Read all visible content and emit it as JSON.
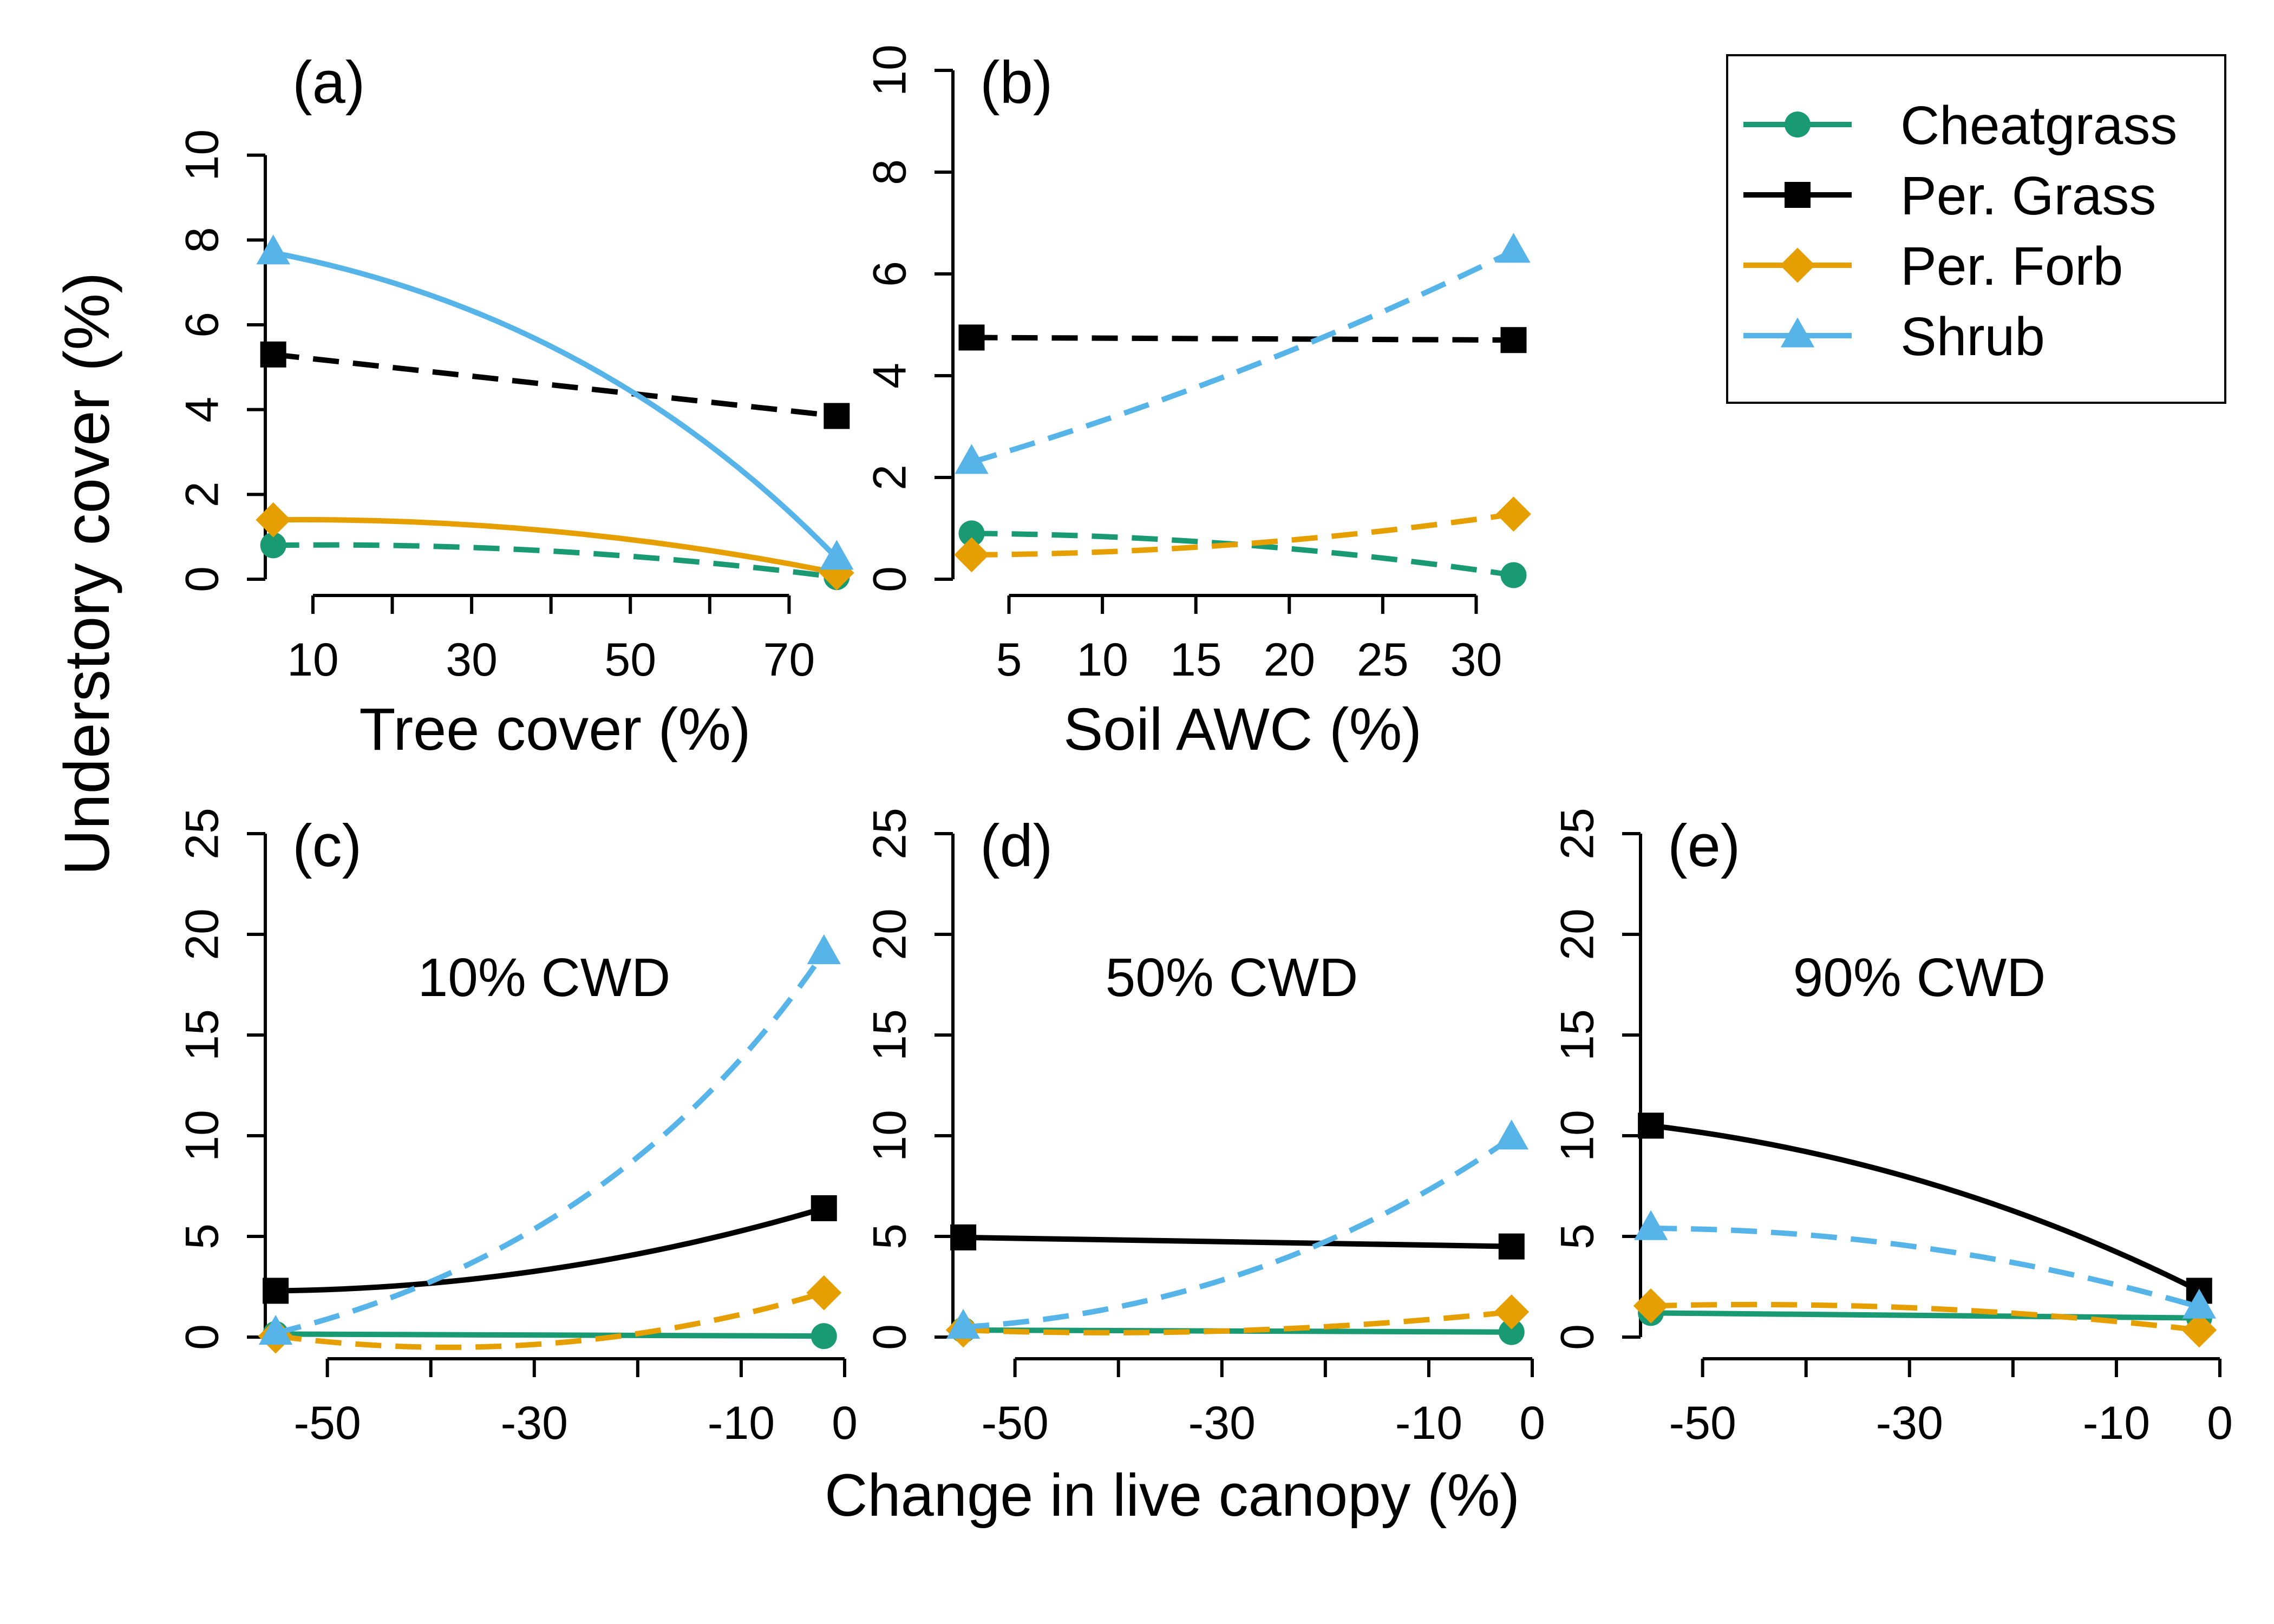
{
  "chart_data": [
    {
      "type": "line",
      "panel_label": "(a)",
      "annotation": "",
      "xlabel": "Tree cover (%)",
      "ylabel": "",
      "xlim": [
        4,
        77
      ],
      "ylim": [
        0,
        12
      ],
      "xticks": [
        10,
        20,
        30,
        40,
        50,
        60,
        70
      ],
      "xtick_labels": [
        "10",
        "",
        "30",
        "",
        "50",
        "",
        "70"
      ],
      "yticks": [
        0,
        2,
        4,
        6,
        8,
        10
      ],
      "ytick_labels": [
        "0",
        "2",
        "4",
        "6",
        "8",
        "10"
      ],
      "series": [
        {
          "name": "Cheatgrass",
          "style": "dashed",
          "marker": "circle",
          "x": [
            5,
            76
          ],
          "y": [
            0.8,
            0.05
          ],
          "curve": 0.1
        },
        {
          "name": "Per. Grass",
          "style": "dashed",
          "marker": "square",
          "x": [
            5,
            76
          ],
          "y": [
            5.3,
            3.85
          ],
          "curve": 0
        },
        {
          "name": "Per. Forb",
          "style": "solid",
          "marker": "diamond",
          "x": [
            5,
            76
          ],
          "y": [
            1.4,
            0.15
          ],
          "curve": 0.15
        },
        {
          "name": "Shrub",
          "style": "solid",
          "marker": "triangle",
          "x": [
            5,
            76
          ],
          "y": [
            7.7,
            0.5
          ],
          "curve": 0.45
        }
      ]
    },
    {
      "type": "line",
      "panel_label": "(b)",
      "annotation": "",
      "xlabel": "Soil AWC (%)",
      "ylabel": "",
      "xlim": [
        2,
        33
      ],
      "ylim": [
        0,
        10
      ],
      "xticks": [
        5,
        10,
        15,
        20,
        25,
        30
      ],
      "xtick_labels": [
        "5",
        "10",
        "15",
        "20",
        "25",
        "30"
      ],
      "yticks": [
        0,
        2,
        4,
        6,
        8,
        10
      ],
      "ytick_labels": [
        "0",
        "2",
        "4",
        "6",
        "8",
        "10"
      ],
      "series": [
        {
          "name": "Cheatgrass",
          "style": "dashed",
          "marker": "circle",
          "x": [
            3,
            32
          ],
          "y": [
            0.9,
            0.08
          ],
          "curve": 0.1
        },
        {
          "name": "Per. Grass",
          "style": "dashed",
          "marker": "square",
          "x": [
            3,
            32
          ],
          "y": [
            4.75,
            4.7
          ],
          "curve": 0
        },
        {
          "name": "Per. Forb",
          "style": "dashed",
          "marker": "diamond",
          "x": [
            3,
            32
          ],
          "y": [
            0.48,
            1.28
          ],
          "curve": -0.1
        },
        {
          "name": "Shrub",
          "style": "dashed",
          "marker": "triangle",
          "x": [
            3,
            32
          ],
          "y": [
            2.3,
            6.45
          ],
          "curve": -0.12
        }
      ]
    },
    {
      "type": "line",
      "panel_label": "(c)",
      "annotation": "10% CWD",
      "xlabel": "",
      "ylabel": "",
      "xlim": [
        -56,
        0
      ],
      "ylim": [
        0,
        25
      ],
      "xticks": [
        -50,
        -40,
        -30,
        -20,
        -10,
        0
      ],
      "xtick_labels": [
        "-50",
        "",
        "-30",
        "",
        "-10",
        "0"
      ],
      "yticks": [
        0,
        5,
        10,
        15,
        20,
        25
      ],
      "ytick_labels": [
        "0",
        "5",
        "10",
        "15",
        "20",
        "25"
      ],
      "series": [
        {
          "name": "Cheatgrass",
          "style": "solid",
          "marker": "circle",
          "x": [
            -55,
            -2
          ],
          "y": [
            0.15,
            0.05
          ],
          "curve": 0
        },
        {
          "name": "Per. Grass",
          "style": "solid",
          "marker": "square",
          "x": [
            -55,
            -2
          ],
          "y": [
            2.3,
            6.4
          ],
          "curve": -0.2
        },
        {
          "name": "Per. Forb",
          "style": "dashed",
          "marker": "diamond",
          "x": [
            -55,
            -2
          ],
          "y": [
            0.05,
            2.2
          ],
          "curve": -0.3
        },
        {
          "name": "Shrub",
          "style": "dashed",
          "marker": "triangle",
          "x": [
            -55,
            -2
          ],
          "y": [
            0.2,
            19.1
          ],
          "curve": -0.55
        }
      ]
    },
    {
      "type": "line",
      "panel_label": "(d)",
      "annotation": "50% CWD",
      "xlabel": "Change in live canopy (%)",
      "ylabel": "",
      "xlim": [
        -56,
        0
      ],
      "ylim": [
        0,
        25
      ],
      "xticks": [
        -50,
        -40,
        -30,
        -20,
        -10,
        0
      ],
      "xtick_labels": [
        "-50",
        "",
        "-30",
        "",
        "-10",
        "0"
      ],
      "yticks": [
        0,
        5,
        10,
        15,
        20,
        25
      ],
      "ytick_labels": [
        "0",
        "5",
        "10",
        "15",
        "20",
        "25"
      ],
      "series": [
        {
          "name": "Cheatgrass",
          "style": "solid",
          "marker": "circle",
          "x": [
            -55,
            -2
          ],
          "y": [
            0.35,
            0.25
          ],
          "curve": 0
        },
        {
          "name": "Per. Grass",
          "style": "solid",
          "marker": "square",
          "x": [
            -55,
            -2
          ],
          "y": [
            4.95,
            4.5
          ],
          "curve": 0
        },
        {
          "name": "Per. Forb",
          "style": "dashed",
          "marker": "diamond",
          "x": [
            -55,
            -2
          ],
          "y": [
            0.35,
            1.25
          ],
          "curve": -0.1
        },
        {
          "name": "Shrub",
          "style": "dashed",
          "marker": "triangle",
          "x": [
            -55,
            -2
          ],
          "y": [
            0.5,
            9.9
          ],
          "curve": -0.4
        }
      ]
    },
    {
      "type": "line",
      "panel_label": "(e)",
      "annotation": "90% CWD",
      "xlabel": "",
      "ylabel": "",
      "xlim": [
        -56,
        0
      ],
      "ylim": [
        0,
        25
      ],
      "xticks": [
        -50,
        -40,
        -30,
        -20,
        -10,
        0
      ],
      "xtick_labels": [
        "-50",
        "",
        "-30",
        "",
        "-10",
        "0"
      ],
      "yticks": [
        0,
        5,
        10,
        15,
        20,
        25
      ],
      "ytick_labels": [
        "0",
        "5",
        "10",
        "15",
        "20",
        "25"
      ],
      "series": [
        {
          "name": "Cheatgrass",
          "style": "solid",
          "marker": "circle",
          "x": [
            -55,
            -2
          ],
          "y": [
            1.2,
            0.95
          ],
          "curve": 0
        },
        {
          "name": "Per. Grass",
          "style": "solid",
          "marker": "square",
          "x": [
            -55,
            -2
          ],
          "y": [
            10.5,
            2.3
          ],
          "curve": 0.25
        },
        {
          "name": "Per. Forb",
          "style": "dashed",
          "marker": "diamond",
          "x": [
            -55,
            -2
          ],
          "y": [
            1.55,
            0.35
          ],
          "curve": 0.1
        },
        {
          "name": "Shrub",
          "style": "dashed",
          "marker": "triangle",
          "x": [
            -55,
            -2
          ],
          "y": [
            5.4,
            1.5
          ],
          "curve": 0.2
        }
      ]
    }
  ],
  "shared": {
    "ylabel": "Understory cover (%)",
    "legend_placement": "top-right",
    "legend": [
      {
        "name": "Cheatgrass",
        "color": "#1a9a73",
        "marker": "circle"
      },
      {
        "name": "Per. Grass",
        "color": "#000000",
        "marker": "square"
      },
      {
        "name": "Per. Forb",
        "color": "#e69f00",
        "marker": "diamond"
      },
      {
        "name": "Shrub",
        "color": "#56b4e9",
        "marker": "triangle"
      }
    ]
  }
}
